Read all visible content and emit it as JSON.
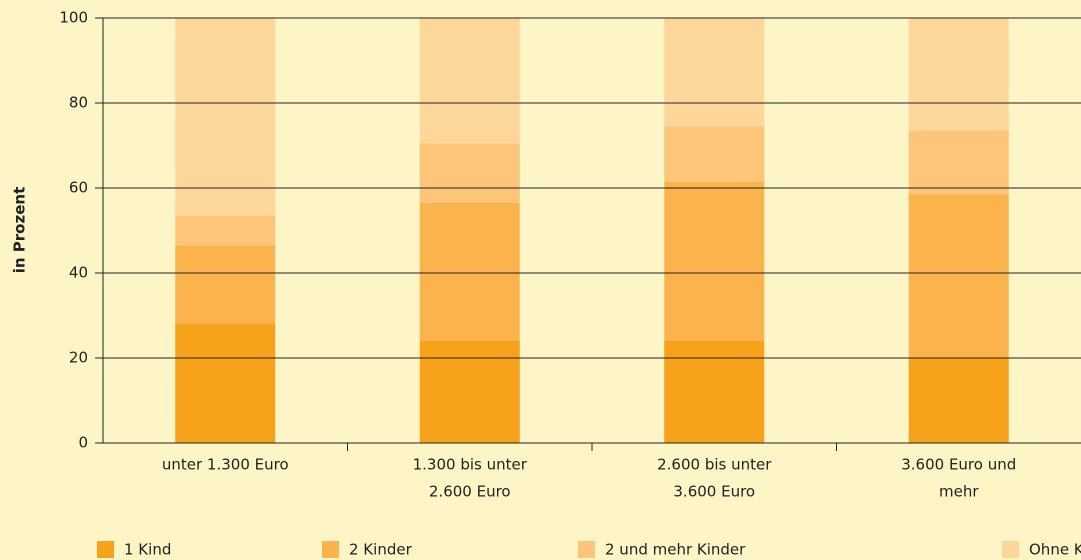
{
  "chart_data": {
    "type": "stacked_bar",
    "y_label": "in Prozent",
    "categories": [
      [
        "unter 1.300 Euro"
      ],
      [
        "1.300 bis unter",
        "2.600 Euro"
      ],
      [
        "2.600 bis unter",
        "3.600 Euro"
      ],
      [
        "3.600 Euro und",
        "mehr"
      ]
    ],
    "series": [
      {
        "name": "1 Kind",
        "color": "#f7a21b",
        "values": [
          28,
          24,
          24,
          20
        ]
      },
      {
        "name": "2 Kinder",
        "color": "#fbb34e",
        "values": [
          18.5,
          32.5,
          37.5,
          38.5
        ]
      },
      {
        "name": "2 und mehr Kinder",
        "color": "#fdc57a",
        "values": [
          7,
          14,
          13,
          15
        ]
      },
      {
        "name": "Ohne Kind",
        "color": "#fdd699",
        "values": [
          46.5,
          29.5,
          25.5,
          26.5
        ]
      }
    ],
    "ylim": [
      0,
      100
    ],
    "yticks": [
      0,
      20,
      40,
      60,
      80,
      100
    ],
    "grid": true,
    "legend": "bottom"
  }
}
